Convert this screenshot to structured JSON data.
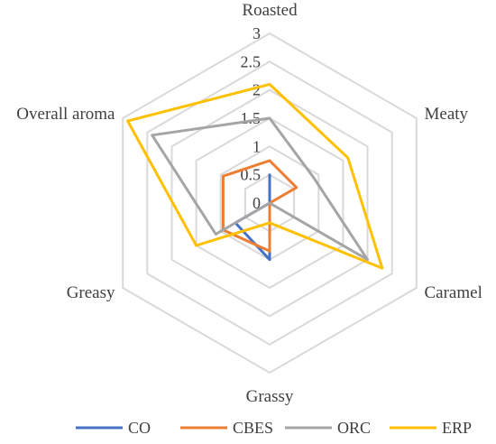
{
  "chart_data": {
    "type": "radar",
    "axes": [
      "Roasted",
      "Meaty",
      "Caramel",
      "Grassy",
      "Greasy",
      "Overall aroma"
    ],
    "rlim": [
      0,
      3
    ],
    "ticks": [
      "0",
      "0.5",
      "1",
      "1.5",
      "2",
      "2.5",
      "3"
    ],
    "grid": true,
    "legend_position": "bottom",
    "series": [
      {
        "name": "CO",
        "color": "#4472c4",
        "values": [
          0.5,
          0.0,
          0.0,
          1.0,
          0.7,
          0.0
        ]
      },
      {
        "name": "CBES",
        "color": "#ed7d31",
        "values": [
          0.75,
          0.55,
          0.0,
          0.85,
          0.95,
          0.95
        ]
      },
      {
        "name": "ORC",
        "color": "#a5a5a5",
        "values": [
          1.5,
          0.9,
          2.0,
          0.0,
          1.1,
          2.4
        ]
      },
      {
        "name": "ERP",
        "color": "#ffc000",
        "values": [
          2.1,
          1.6,
          2.3,
          0.35,
          1.5,
          2.9
        ]
      }
    ]
  }
}
